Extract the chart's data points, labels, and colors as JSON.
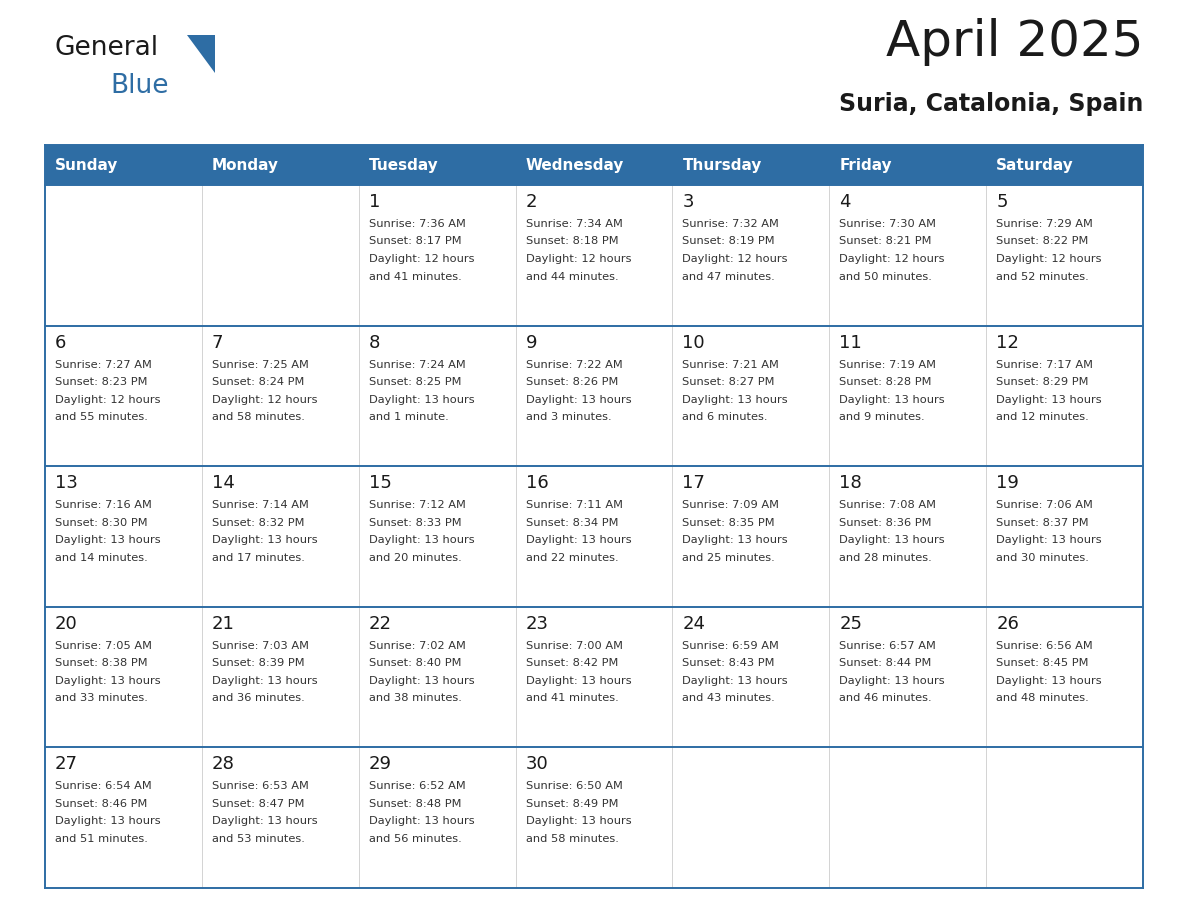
{
  "title": "April 2025",
  "subtitle": "Suria, Catalonia, Spain",
  "header_bg": "#2e6da4",
  "header_text_color": "#ffffff",
  "cell_bg": "#ffffff",
  "row_sep_color": "#2e6da4",
  "col_sep_color": "#cccccc",
  "outer_border_color": "#2e6da4",
  "day_number_color": "#1a1a1a",
  "info_text_color": "#333333",
  "day_names": [
    "Sunday",
    "Monday",
    "Tuesday",
    "Wednesday",
    "Thursday",
    "Friday",
    "Saturday"
  ],
  "logo_general_color": "#1a1a1a",
  "logo_blue_color": "#2e6da4",
  "logo_triangle_color": "#2e6da4",
  "title_color": "#1a1a1a",
  "subtitle_color": "#1a1a1a",
  "weeks": [
    [
      {
        "day": "",
        "info": ""
      },
      {
        "day": "",
        "info": ""
      },
      {
        "day": "1",
        "info": "Sunrise: 7:36 AM\nSunset: 8:17 PM\nDaylight: 12 hours\nand 41 minutes."
      },
      {
        "day": "2",
        "info": "Sunrise: 7:34 AM\nSunset: 8:18 PM\nDaylight: 12 hours\nand 44 minutes."
      },
      {
        "day": "3",
        "info": "Sunrise: 7:32 AM\nSunset: 8:19 PM\nDaylight: 12 hours\nand 47 minutes."
      },
      {
        "day": "4",
        "info": "Sunrise: 7:30 AM\nSunset: 8:21 PM\nDaylight: 12 hours\nand 50 minutes."
      },
      {
        "day": "5",
        "info": "Sunrise: 7:29 AM\nSunset: 8:22 PM\nDaylight: 12 hours\nand 52 minutes."
      }
    ],
    [
      {
        "day": "6",
        "info": "Sunrise: 7:27 AM\nSunset: 8:23 PM\nDaylight: 12 hours\nand 55 minutes."
      },
      {
        "day": "7",
        "info": "Sunrise: 7:25 AM\nSunset: 8:24 PM\nDaylight: 12 hours\nand 58 minutes."
      },
      {
        "day": "8",
        "info": "Sunrise: 7:24 AM\nSunset: 8:25 PM\nDaylight: 13 hours\nand 1 minute."
      },
      {
        "day": "9",
        "info": "Sunrise: 7:22 AM\nSunset: 8:26 PM\nDaylight: 13 hours\nand 3 minutes."
      },
      {
        "day": "10",
        "info": "Sunrise: 7:21 AM\nSunset: 8:27 PM\nDaylight: 13 hours\nand 6 minutes."
      },
      {
        "day": "11",
        "info": "Sunrise: 7:19 AM\nSunset: 8:28 PM\nDaylight: 13 hours\nand 9 minutes."
      },
      {
        "day": "12",
        "info": "Sunrise: 7:17 AM\nSunset: 8:29 PM\nDaylight: 13 hours\nand 12 minutes."
      }
    ],
    [
      {
        "day": "13",
        "info": "Sunrise: 7:16 AM\nSunset: 8:30 PM\nDaylight: 13 hours\nand 14 minutes."
      },
      {
        "day": "14",
        "info": "Sunrise: 7:14 AM\nSunset: 8:32 PM\nDaylight: 13 hours\nand 17 minutes."
      },
      {
        "day": "15",
        "info": "Sunrise: 7:12 AM\nSunset: 8:33 PM\nDaylight: 13 hours\nand 20 minutes."
      },
      {
        "day": "16",
        "info": "Sunrise: 7:11 AM\nSunset: 8:34 PM\nDaylight: 13 hours\nand 22 minutes."
      },
      {
        "day": "17",
        "info": "Sunrise: 7:09 AM\nSunset: 8:35 PM\nDaylight: 13 hours\nand 25 minutes."
      },
      {
        "day": "18",
        "info": "Sunrise: 7:08 AM\nSunset: 8:36 PM\nDaylight: 13 hours\nand 28 minutes."
      },
      {
        "day": "19",
        "info": "Sunrise: 7:06 AM\nSunset: 8:37 PM\nDaylight: 13 hours\nand 30 minutes."
      }
    ],
    [
      {
        "day": "20",
        "info": "Sunrise: 7:05 AM\nSunset: 8:38 PM\nDaylight: 13 hours\nand 33 minutes."
      },
      {
        "day": "21",
        "info": "Sunrise: 7:03 AM\nSunset: 8:39 PM\nDaylight: 13 hours\nand 36 minutes."
      },
      {
        "day": "22",
        "info": "Sunrise: 7:02 AM\nSunset: 8:40 PM\nDaylight: 13 hours\nand 38 minutes."
      },
      {
        "day": "23",
        "info": "Sunrise: 7:00 AM\nSunset: 8:42 PM\nDaylight: 13 hours\nand 41 minutes."
      },
      {
        "day": "24",
        "info": "Sunrise: 6:59 AM\nSunset: 8:43 PM\nDaylight: 13 hours\nand 43 minutes."
      },
      {
        "day": "25",
        "info": "Sunrise: 6:57 AM\nSunset: 8:44 PM\nDaylight: 13 hours\nand 46 minutes."
      },
      {
        "day": "26",
        "info": "Sunrise: 6:56 AM\nSunset: 8:45 PM\nDaylight: 13 hours\nand 48 minutes."
      }
    ],
    [
      {
        "day": "27",
        "info": "Sunrise: 6:54 AM\nSunset: 8:46 PM\nDaylight: 13 hours\nand 51 minutes."
      },
      {
        "day": "28",
        "info": "Sunrise: 6:53 AM\nSunset: 8:47 PM\nDaylight: 13 hours\nand 53 minutes."
      },
      {
        "day": "29",
        "info": "Sunrise: 6:52 AM\nSunset: 8:48 PM\nDaylight: 13 hours\nand 56 minutes."
      },
      {
        "day": "30",
        "info": "Sunrise: 6:50 AM\nSunset: 8:49 PM\nDaylight: 13 hours\nand 58 minutes."
      },
      {
        "day": "",
        "info": ""
      },
      {
        "day": "",
        "info": ""
      },
      {
        "day": "",
        "info": ""
      }
    ]
  ]
}
